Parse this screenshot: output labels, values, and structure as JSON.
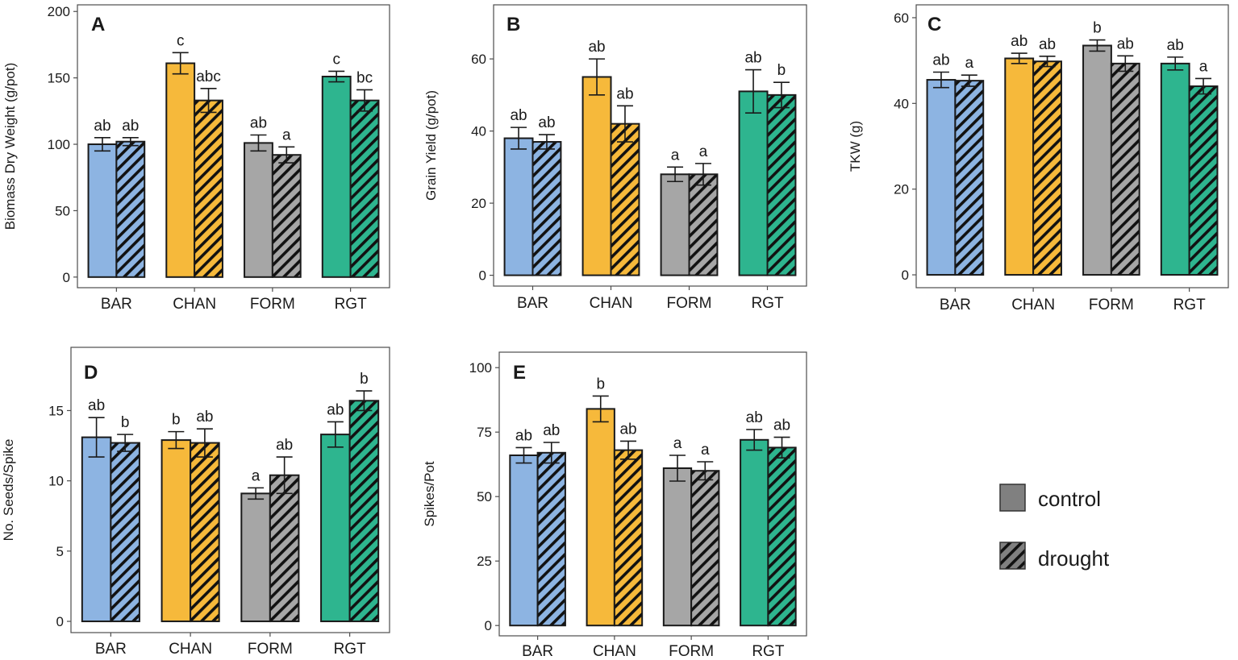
{
  "series_names": [
    "control",
    "drought"
  ],
  "genotype_colors": {
    "BAR": "#8db4e2",
    "CHAN": "#f6b93b",
    "FORM": "#a6a6a6",
    "RGT": "#2eb58f"
  },
  "legend": {
    "items": [
      {
        "label": "control",
        "pattern": "solid",
        "color": "#808080"
      },
      {
        "label": "drought",
        "pattern": "hatched",
        "color": "#808080"
      }
    ]
  },
  "chart_data": [
    {
      "panel": "A",
      "type": "bar",
      "categories": [
        "BAR",
        "CHAN",
        "FORM",
        "RGT"
      ],
      "ylabel": "Biomass Dry Weight (g/pot)",
      "ylim": [
        -8,
        205
      ],
      "yticks": [
        0,
        50,
        100,
        150,
        200
      ],
      "series": [
        {
          "name": "control",
          "values": [
            100,
            161,
            101,
            151
          ],
          "errors": [
            5,
            8,
            6,
            4
          ],
          "labels": [
            "ab",
            "c",
            "ab",
            "c"
          ]
        },
        {
          "name": "drought",
          "values": [
            102,
            133,
            92,
            133
          ],
          "errors": [
            3,
            9,
            6,
            8
          ],
          "labels": [
            "ab",
            "abc",
            "a",
            "bc"
          ]
        }
      ]
    },
    {
      "panel": "B",
      "type": "bar",
      "categories": [
        "BAR",
        "CHAN",
        "FORM",
        "RGT"
      ],
      "ylabel": "Grain Yield (g/pot)",
      "ylim": [
        -3,
        75
      ],
      "yticks": [
        0,
        20,
        40,
        60
      ],
      "series": [
        {
          "name": "control",
          "values": [
            38,
            55,
            28,
            51
          ],
          "errors": [
            3,
            5,
            2,
            6
          ],
          "labels": [
            "ab",
            "ab",
            "a",
            "ab"
          ]
        },
        {
          "name": "drought",
          "values": [
            37,
            42,
            28,
            50
          ],
          "errors": [
            2,
            5,
            3,
            3.5
          ],
          "labels": [
            "ab",
            "ab",
            "a",
            "b"
          ]
        }
      ]
    },
    {
      "panel": "C",
      "type": "bar",
      "categories": [
        "BAR",
        "CHAN",
        "FORM",
        "RGT"
      ],
      "ylabel": "TKW (g)",
      "ylim": [
        -3,
        63
      ],
      "yticks": [
        0,
        20,
        40,
        60
      ],
      "series": [
        {
          "name": "control",
          "values": [
            45.5,
            50.5,
            53.5,
            49.3
          ],
          "errors": [
            1.8,
            1.2,
            1.3,
            1.5
          ],
          "labels": [
            "ab",
            "ab",
            "b",
            "ab"
          ]
        },
        {
          "name": "drought",
          "values": [
            45.3,
            49.8,
            49.3,
            44
          ],
          "errors": [
            1.3,
            1.2,
            1.8,
            1.8
          ],
          "labels": [
            "a",
            "ab",
            "ab",
            "a"
          ]
        }
      ]
    },
    {
      "panel": "D",
      "type": "bar",
      "categories": [
        "BAR",
        "CHAN",
        "FORM",
        "RGT"
      ],
      "ylabel": "No. Seeds/Spike",
      "ylim": [
        -0.8,
        19.5
      ],
      "yticks": [
        0,
        5,
        10,
        15
      ],
      "series": [
        {
          "name": "control",
          "values": [
            13.1,
            12.9,
            9.1,
            13.3
          ],
          "errors": [
            1.4,
            0.6,
            0.4,
            0.9
          ],
          "labels": [
            "ab",
            "b",
            "a",
            "ab"
          ]
        },
        {
          "name": "drought",
          "values": [
            12.7,
            12.7,
            10.4,
            15.7
          ],
          "errors": [
            0.6,
            1.0,
            1.3,
            0.7
          ],
          "labels": [
            "b",
            "ab",
            "ab",
            "b"
          ]
        }
      ]
    },
    {
      "panel": "E",
      "type": "bar",
      "categories": [
        "BAR",
        "CHAN",
        "FORM",
        "RGT"
      ],
      "ylabel": "Spikes/Pot",
      "ylim": [
        -4,
        106
      ],
      "yticks": [
        0,
        25,
        50,
        75,
        100
      ],
      "series": [
        {
          "name": "control",
          "values": [
            66,
            84,
            61,
            72
          ],
          "errors": [
            3,
            5,
            5,
            4
          ],
          "labels": [
            "ab",
            "b",
            "a",
            "ab"
          ]
        },
        {
          "name": "drought",
          "values": [
            67,
            68,
            60,
            69
          ],
          "errors": [
            4,
            3.5,
            3.5,
            4
          ],
          "labels": [
            "ab",
            "ab",
            "a",
            "ab"
          ]
        }
      ]
    }
  ]
}
